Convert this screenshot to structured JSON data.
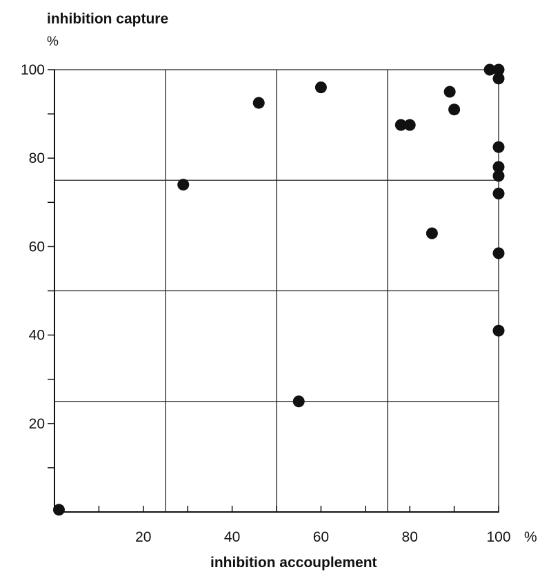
{
  "chart_data": {
    "type": "scatter",
    "title": "",
    "ylabel": "inhibition capture",
    "ylabel_unit": "%",
    "xlabel": "inhibition accouplement",
    "xlabel_unit": "%",
    "xlim": [
      0,
      100
    ],
    "ylim": [
      0,
      100
    ],
    "x_tick_labels": [
      "20",
      "40",
      "60",
      "80",
      "100"
    ],
    "y_tick_labels": [
      "20",
      "40",
      "60",
      "80",
      "100"
    ],
    "grid": true,
    "points": [
      {
        "x": 1,
        "y": 0.5
      },
      {
        "x": 29,
        "y": 74
      },
      {
        "x": 46,
        "y": 92.5
      },
      {
        "x": 55,
        "y": 25
      },
      {
        "x": 60,
        "y": 96
      },
      {
        "x": 78,
        "y": 87.5
      },
      {
        "x": 80,
        "y": 87.5
      },
      {
        "x": 85,
        "y": 63
      },
      {
        "x": 89,
        "y": 95
      },
      {
        "x": 90,
        "y": 91
      },
      {
        "x": 98,
        "y": 100
      },
      {
        "x": 100,
        "y": 100
      },
      {
        "x": 100,
        "y": 98
      },
      {
        "x": 100,
        "y": 82.5
      },
      {
        "x": 100,
        "y": 78
      },
      {
        "x": 100,
        "y": 76
      },
      {
        "x": 100,
        "y": 72
      },
      {
        "x": 100,
        "y": 58.5
      },
      {
        "x": 100,
        "y": 41
      }
    ]
  }
}
